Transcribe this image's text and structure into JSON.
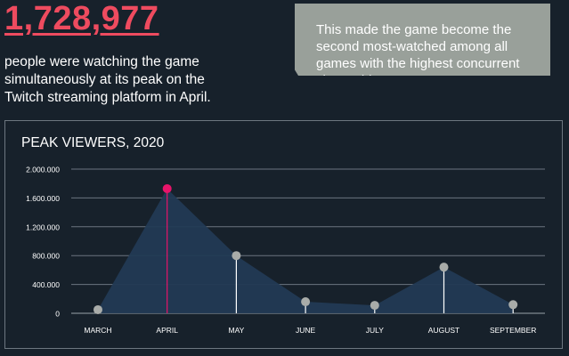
{
  "headline": {
    "value": "1,728,977",
    "description": "people were watching the game simultaneously at its peak on the Twitch streaming platform in April."
  },
  "callout": {
    "text": "This made the game become the second most-watched among all games with the highest concurrent viewership."
  },
  "colors": {
    "background": "#17212b",
    "accent": "#ee4b5f",
    "highlight_point": "#e8146a",
    "point": "#a9aca9",
    "area_fill": "#223a54",
    "gridline": "#6b7480"
  },
  "chart_data": {
    "type": "area",
    "title": "PEAK VIEWERS, 2020",
    "xlabel": "",
    "ylabel": "",
    "categories": [
      "MARCH",
      "APRIL",
      "MAY",
      "JUNE",
      "JULY",
      "AUGUST",
      "SEPTEMBER"
    ],
    "values": [
      50000,
      1728977,
      800000,
      160000,
      110000,
      640000,
      120000
    ],
    "highlight_index": 1,
    "ylim": [
      0,
      2000000
    ],
    "yticks": [
      0,
      400000,
      800000,
      1200000,
      1600000,
      2000000
    ],
    "ytick_labels": [
      "0",
      "400.000",
      "800.000",
      "1.200.000",
      "1.600.000",
      "2.000.000"
    ],
    "grid": true,
    "legend": "none"
  }
}
